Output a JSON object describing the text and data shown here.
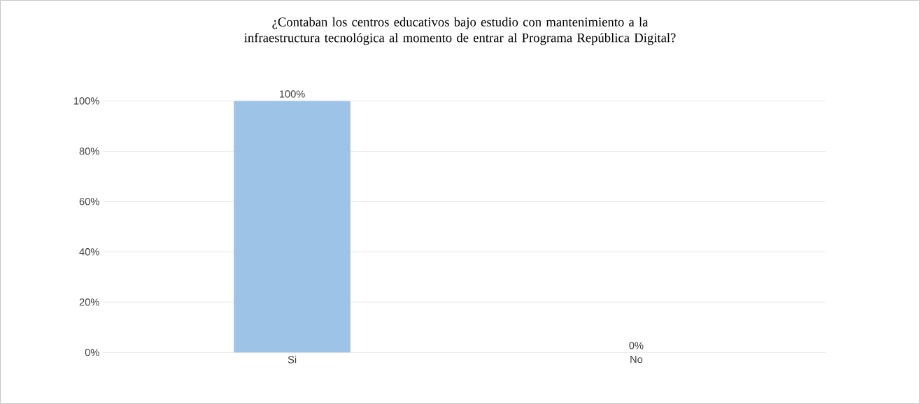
{
  "chart_data": {
    "type": "bar",
    "title": "¿Contaban los centros educativos bajo estudio con mantenimiento a la infraestructura tecnológica al momento de entrar al Programa República Digital?",
    "categories": [
      "Si",
      "No"
    ],
    "values": [
      100,
      0
    ],
    "colors": [
      "#9dc3e6",
      "#375623"
    ],
    "value_labels": [
      "100%",
      "0%"
    ],
    "ylim": [
      0,
      100
    ],
    "yticks": [
      {
        "value": 0,
        "label": "0%"
      },
      {
        "value": 20,
        "label": "20%"
      },
      {
        "value": 40,
        "label": "40%"
      },
      {
        "value": 60,
        "label": "60%"
      },
      {
        "value": 80,
        "label": "80%"
      },
      {
        "value": 100,
        "label": "100%"
      }
    ],
    "grid": "y"
  }
}
